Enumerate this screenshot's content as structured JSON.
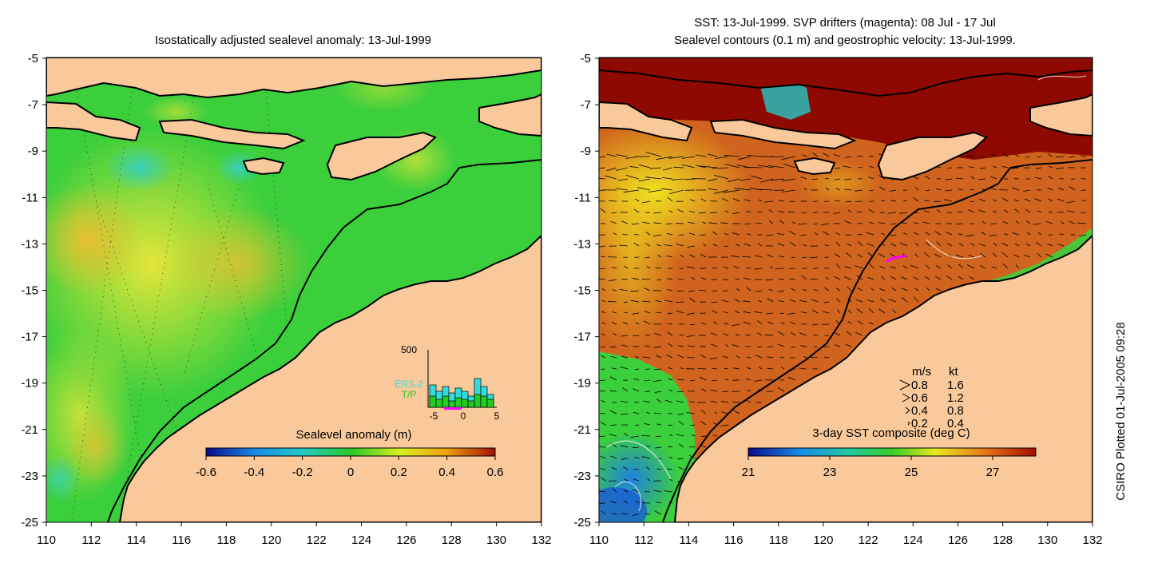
{
  "left_panel": {
    "title": "Isostatically adjusted sealevel anomaly: 13-Jul-1999",
    "colorbar": {
      "label": "Sealevel anomaly (m)",
      "ticks": [
        "-0.6",
        "-0.4",
        "-0.2",
        "0",
        "0.2",
        "0.4",
        "0.6"
      ]
    },
    "inset": {
      "ymax_label": "500",
      "x_ticks": [
        "-5",
        "0",
        "5"
      ],
      "legend": [
        {
          "name": "ERS-2",
          "color": "#33dddd"
        },
        {
          "name": "T/P",
          "color": "#22cc22"
        }
      ]
    }
  },
  "right_panel": {
    "title_line1": "SST: 13-Jul-1999. SVP drifters (magenta): 08 Jul - 17 Jul",
    "title_line2": "Sealevel contours (0.1 m) and geostrophic velocity: 13-Jul-1999.",
    "colorbar": {
      "label": "3-day SST composite (deg C)",
      "ticks": [
        "21",
        "23",
        "25",
        "27"
      ]
    },
    "velocity_legend": {
      "header_ms": "m/s",
      "header_kt": "kt",
      "rows": [
        {
          "ms": "0.8",
          "kt": "1.6"
        },
        {
          "ms": "0.6",
          "kt": "1.2"
        },
        {
          "ms": "0.4",
          "kt": "0.8"
        },
        {
          "ms": "0.2",
          "kt": "0.4"
        }
      ]
    }
  },
  "axes": {
    "y_ticks": [
      "-5",
      "-7",
      "-9",
      "-11",
      "-13",
      "-15",
      "-17",
      "-19",
      "-21",
      "-23",
      "-25"
    ],
    "x_ticks": [
      "110",
      "112",
      "114",
      "116",
      "118",
      "120",
      "122",
      "124",
      "126",
      "128",
      "130",
      "132"
    ]
  },
  "credit": "CSIRO Plotted 01-Jul-2005 09:28",
  "colors": {
    "land": "#f9c99b",
    "sla_base": "#3ccf3c",
    "sst_base": "#d0641e",
    "sst_land_north": "#8e0a00",
    "magenta": "#ff00ff"
  }
}
